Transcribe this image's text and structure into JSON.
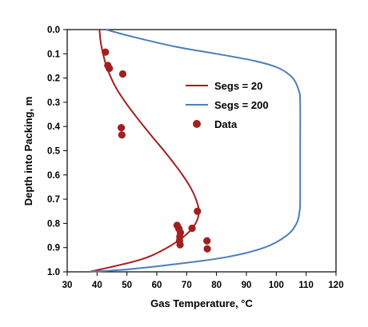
{
  "chart_data": {
    "type": "line",
    "title": "",
    "xlabel": "Gas Temperature, °C",
    "ylabel": "Depth into Packing, m",
    "xlim": [
      30,
      120
    ],
    "ylim": [
      0.0,
      1.0
    ],
    "y_inverted": true,
    "x_ticks": [
      30,
      40,
      50,
      60,
      70,
      80,
      90,
      100,
      110,
      120
    ],
    "y_ticks": [
      "0.0",
      "0.1",
      "0.2",
      "0.3",
      "0.4",
      "0.5",
      "0.6",
      "0.7",
      "0.8",
      "0.9",
      "1.0"
    ],
    "grid": false,
    "legend": {
      "placement": "center-right",
      "entries": [
        "Segs = 20",
        "Segs = 200",
        "Data"
      ]
    },
    "series": [
      {
        "name": "Segs = 20",
        "kind": "line",
        "color": "#a31f1f",
        "points": [
          [
            40.8,
            0.0
          ],
          [
            41.2,
            0.05
          ],
          [
            42.0,
            0.1
          ],
          [
            43.1,
            0.15
          ],
          [
            44.7,
            0.2
          ],
          [
            46.8,
            0.25
          ],
          [
            49.5,
            0.3
          ],
          [
            52.5,
            0.35
          ],
          [
            55.7,
            0.4
          ],
          [
            59.0,
            0.45
          ],
          [
            62.4,
            0.5
          ],
          [
            65.6,
            0.55
          ],
          [
            68.6,
            0.6
          ],
          [
            71.2,
            0.65
          ],
          [
            73.1,
            0.7
          ],
          [
            74.1,
            0.75
          ],
          [
            73.0,
            0.8
          ],
          [
            69.5,
            0.85
          ],
          [
            63.5,
            0.9
          ],
          [
            54.5,
            0.95
          ],
          [
            37.5,
            1.0
          ]
        ]
      },
      {
        "name": "Segs = 200",
        "kind": "line",
        "color": "#4a7ebb",
        "points": [
          [
            43.0,
            0.0
          ],
          [
            52.0,
            0.03
          ],
          [
            66.0,
            0.07
          ],
          [
            80.0,
            0.1
          ],
          [
            93.0,
            0.13
          ],
          [
            101.0,
            0.16
          ],
          [
            105.5,
            0.2
          ],
          [
            107.5,
            0.25
          ],
          [
            108.0,
            0.3
          ],
          [
            108.0,
            0.5
          ],
          [
            108.0,
            0.7
          ],
          [
            107.8,
            0.75
          ],
          [
            106.8,
            0.8
          ],
          [
            103.5,
            0.85
          ],
          [
            96.0,
            0.9
          ],
          [
            83.0,
            0.94
          ],
          [
            65.0,
            0.97
          ],
          [
            50.0,
            0.99
          ],
          [
            37.5,
            1.0
          ]
        ]
      },
      {
        "name": "Data",
        "kind": "scatter",
        "color": "#a31f1f",
        "points": [
          [
            42.8,
            0.093
          ],
          [
            43.6,
            0.148
          ],
          [
            44.1,
            0.16
          ],
          [
            48.6,
            0.183
          ],
          [
            48.1,
            0.405
          ],
          [
            48.3,
            0.435
          ],
          [
            73.6,
            0.75
          ],
          [
            71.8,
            0.82
          ],
          [
            66.8,
            0.808
          ],
          [
            67.4,
            0.822
          ],
          [
            67.9,
            0.838
          ],
          [
            67.7,
            0.855
          ],
          [
            67.6,
            0.872
          ],
          [
            67.8,
            0.888
          ],
          [
            76.8,
            0.872
          ],
          [
            76.9,
            0.905
          ]
        ]
      }
    ]
  }
}
